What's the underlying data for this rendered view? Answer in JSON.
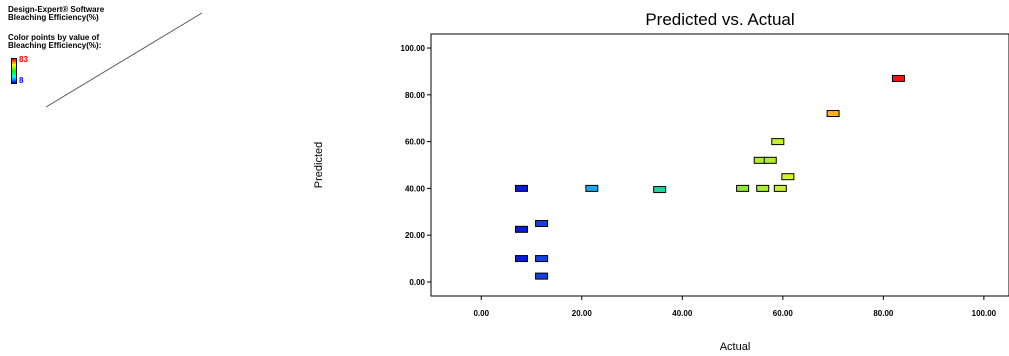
{
  "legend": {
    "software": "Design-Expert® Software",
    "response": "Bleaching Efficiency(%)",
    "color_line1": "Color points by value of",
    "color_line2": "Bleaching Efficiency(%):",
    "max_label": "83",
    "min_label": "8",
    "max_color": "#ff0000",
    "min_color": "#0000ff"
  },
  "chart_data": {
    "type": "scatter",
    "title": "Predicted vs. Actual",
    "xlabel": "Actual",
    "ylabel": "Predicted",
    "xlim": [
      -10,
      105
    ],
    "ylim": [
      -6,
      106
    ],
    "xticks": [
      "0.00",
      "20.00",
      "40.00",
      "60.00",
      "80.00",
      "100.00"
    ],
    "yticks": [
      "0.00",
      "20.00",
      "40.00",
      "60.00",
      "80.00",
      "100.00"
    ],
    "points": [
      {
        "x": 8,
        "y": 40,
        "color": "#0a1ad6"
      },
      {
        "x": 8,
        "y": 22.5,
        "color": "#0a1ad6"
      },
      {
        "x": 8,
        "y": 10,
        "color": "#0a1ad6"
      },
      {
        "x": 12,
        "y": 25,
        "color": "#1440e0"
      },
      {
        "x": 12,
        "y": 10,
        "color": "#1440e0"
      },
      {
        "x": 12,
        "y": 2.5,
        "color": "#1440e0"
      },
      {
        "x": 22,
        "y": 40,
        "color": "#19a8f0"
      },
      {
        "x": 35.5,
        "y": 39.5,
        "color": "#1cd69a"
      },
      {
        "x": 52,
        "y": 40,
        "color": "#8ee833"
      },
      {
        "x": 56,
        "y": 40,
        "color": "#a8ec2c"
      },
      {
        "x": 59.5,
        "y": 40,
        "color": "#c6f028"
      },
      {
        "x": 55.5,
        "y": 52,
        "color": "#b4ee2a"
      },
      {
        "x": 57.5,
        "y": 52,
        "color": "#b4ee2a"
      },
      {
        "x": 59,
        "y": 60,
        "color": "#c6f028"
      },
      {
        "x": 61,
        "y": 45,
        "color": "#d8f22a"
      },
      {
        "x": 70,
        "y": 72,
        "color": "#ffb020"
      },
      {
        "x": 83,
        "y": 87,
        "color": "#ff1010"
      }
    ]
  }
}
